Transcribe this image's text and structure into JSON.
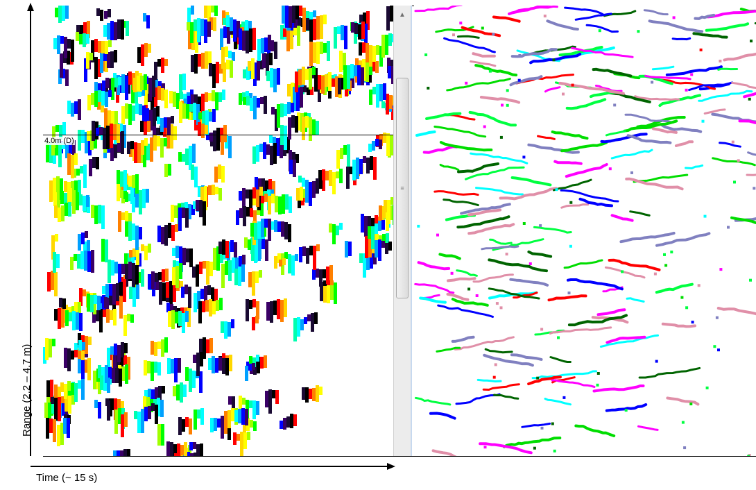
{
  "axes": {
    "y_label": "Range (2.2 – 4.7 m)",
    "x_label": "Time (~ 15 s)"
  },
  "left_panel": {
    "marker_label": "4.0m (D)",
    "palette": [
      "#ff0000",
      "#ff8000",
      "#ffd700",
      "#ffff00",
      "#a0ff00",
      "#00ff00",
      "#00ffb0",
      "#00ffff",
      "#00a0ff",
      "#0000ff",
      "#3a0066",
      "#1a0a33",
      "#000000"
    ]
  },
  "right_panel": {
    "track_colors": [
      "#ff0000",
      "#0000ff",
      "#00ffff",
      "#00dd00",
      "#ff00ff",
      "#006400",
      "#8080c0",
      "#e08fa8",
      "#00ff40"
    ]
  },
  "scrollbar": {
    "up_arrow_icon": "scroll-up-arrow-icon",
    "grip_icon": "scroll-grip-icon"
  }
}
